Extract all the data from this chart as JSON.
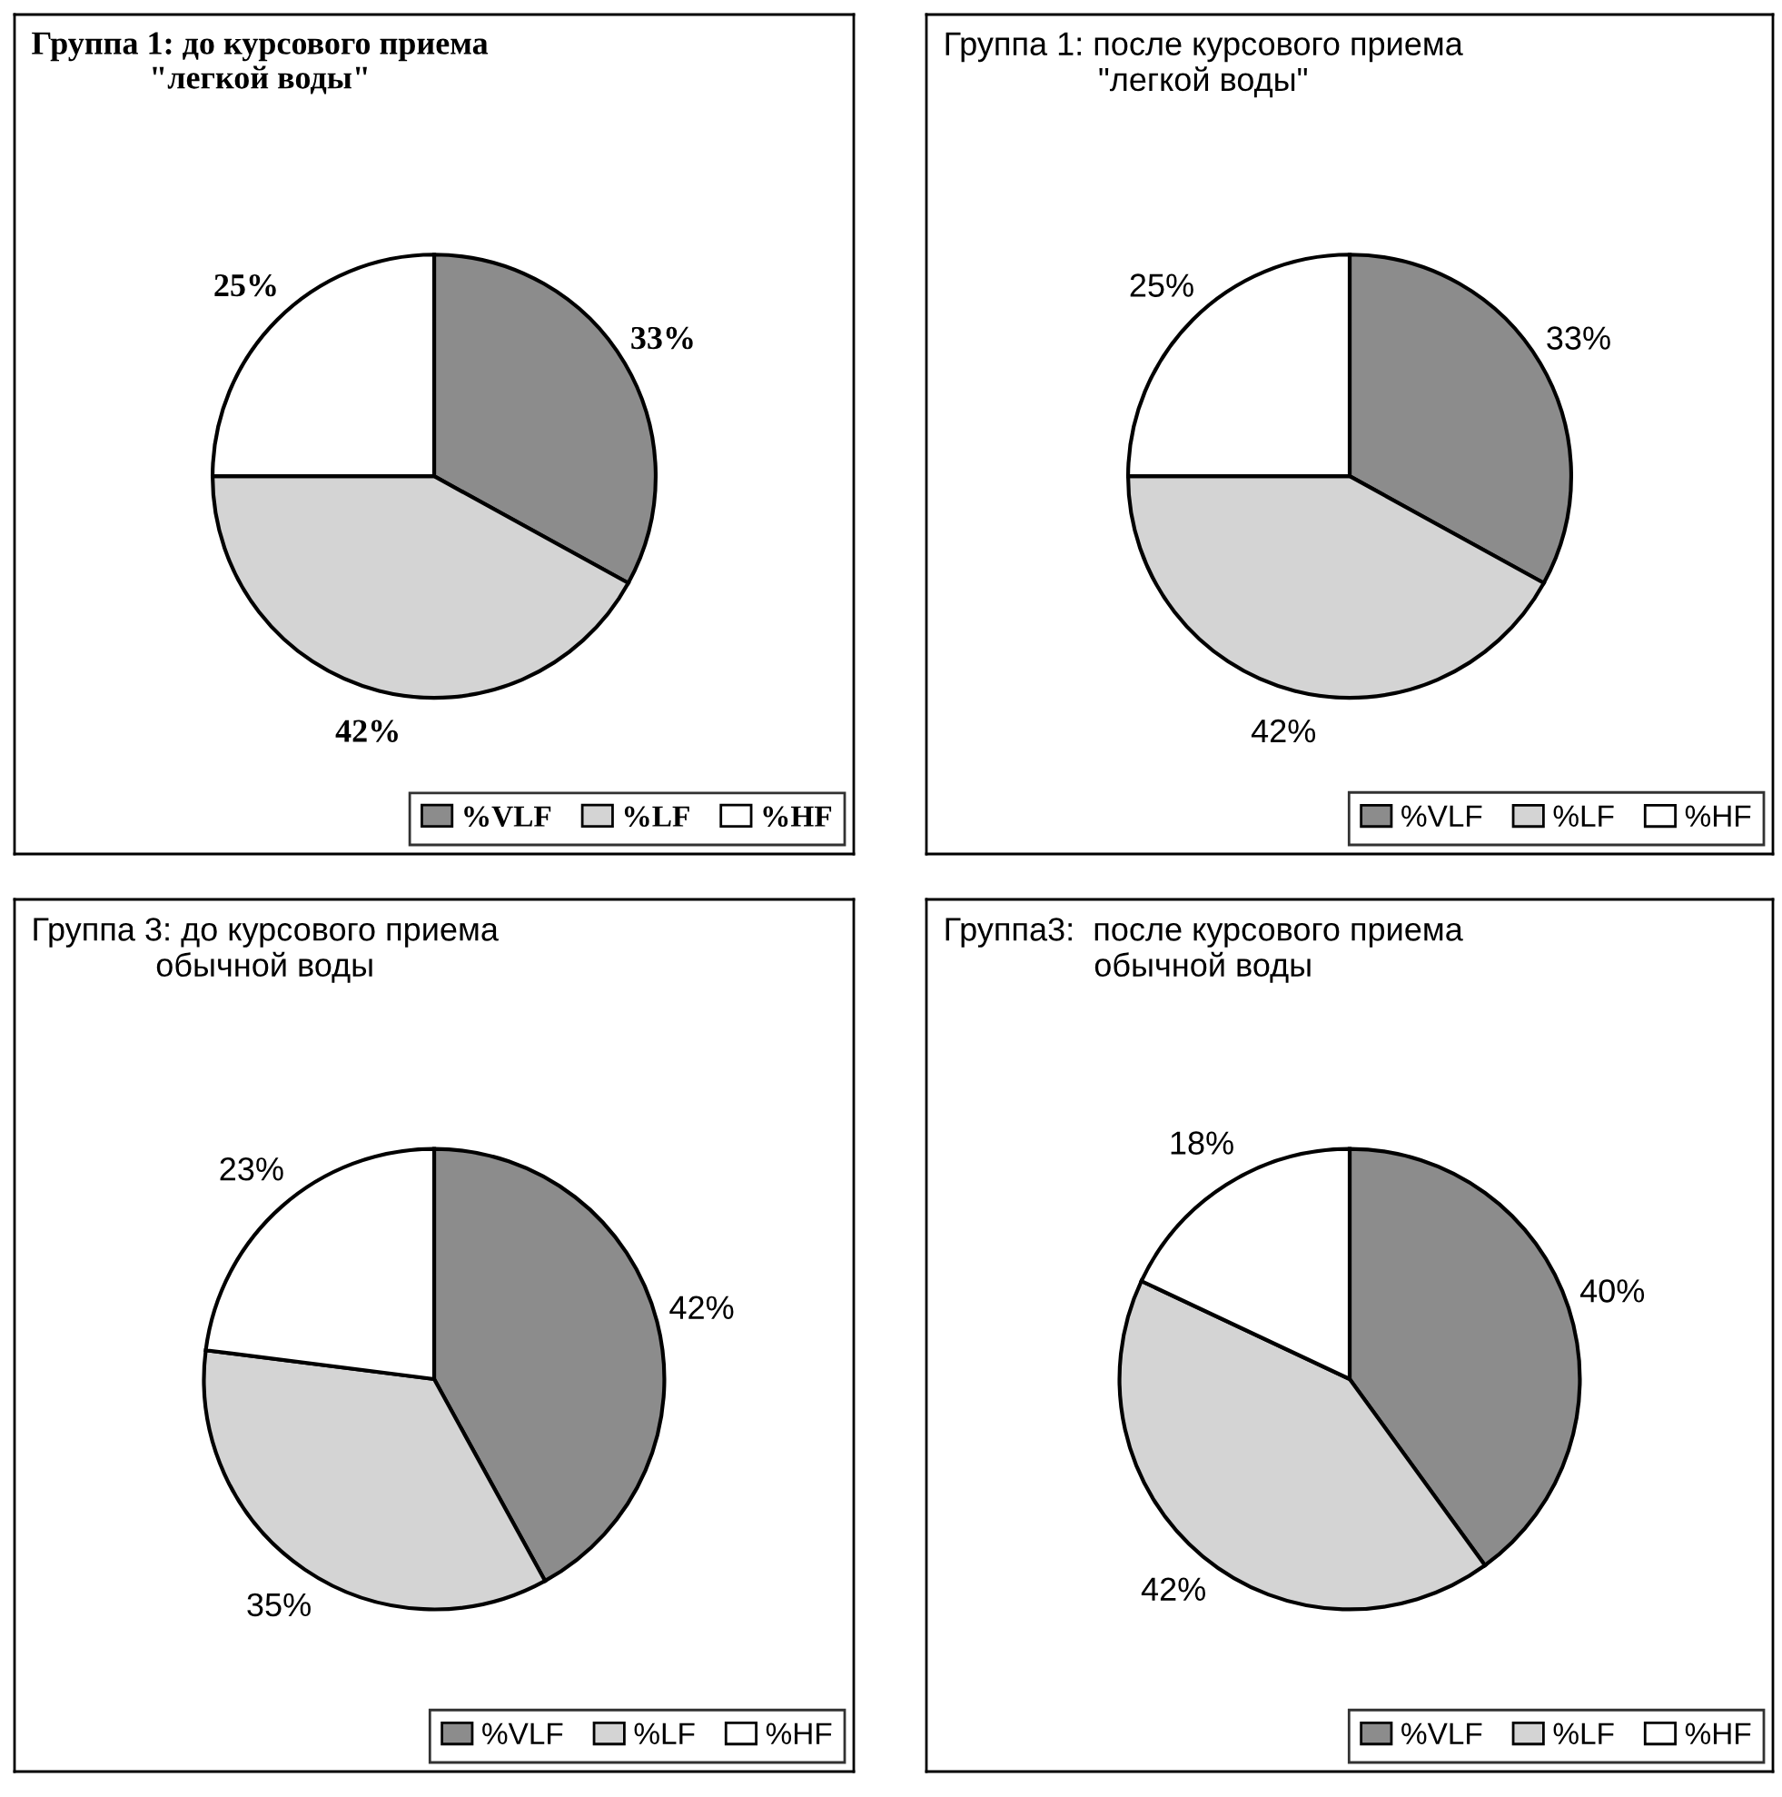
{
  "chart_data": [
    {
      "type": "pie",
      "title": "Группа 1: до курсового приема\n\"легкой воды\"",
      "categories": [
        "%VLF",
        "%LF",
        "%HF"
      ],
      "values": [
        33,
        42,
        25
      ],
      "value_labels": [
        "33%",
        "42%",
        "25%"
      ],
      "colors": [
        "#8c8c8c",
        "#d4d4d4",
        "#ffffff"
      ],
      "legend": "bottom"
    },
    {
      "type": "pie",
      "title": "Группа 1: после курсового приема\n\"легкой воды\"",
      "categories": [
        "%VLF",
        "%LF",
        "%HF"
      ],
      "values": [
        33,
        42,
        25
      ],
      "value_labels": [
        "33%",
        "42%",
        "25%"
      ],
      "colors": [
        "#8c8c8c",
        "#d4d4d4",
        "#ffffff"
      ],
      "legend": "bottom"
    },
    {
      "type": "pie",
      "title": "Группа 3: до курсового приема\nобычной воды",
      "categories": [
        "%VLF",
        "%LF",
        "%HF"
      ],
      "values": [
        42,
        35,
        23
      ],
      "value_labels": [
        "42%",
        "35%",
        "23%"
      ],
      "colors": [
        "#8c8c8c",
        "#d4d4d4",
        "#ffffff"
      ],
      "legend": "bottom"
    },
    {
      "type": "pie",
      "title": "Группа3:  после курсового приема\nобычной воды",
      "categories": [
        "%VLF",
        "%LF",
        "%HF"
      ],
      "values": [
        40,
        42,
        18
      ],
      "value_labels": [
        "40%",
        "42%",
        "18%"
      ],
      "colors": [
        "#8c8c8c",
        "#d4d4d4",
        "#ffffff"
      ],
      "legend": "bottom"
    }
  ]
}
